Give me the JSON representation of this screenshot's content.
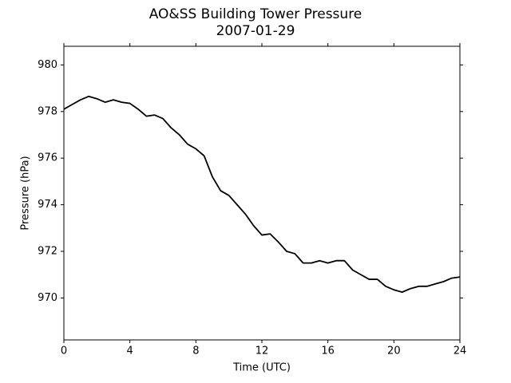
{
  "chart_data": {
    "type": "line",
    "title": "AO&SS Building Tower Pressure",
    "subtitle": "2007-01-29",
    "x_label": "Time (UTC)",
    "y_label": "Pressure (hPa)",
    "x": [
      0,
      0.5,
      1,
      1.5,
      2,
      2.5,
      3,
      3.5,
      4,
      4.5,
      5,
      5.5,
      6,
      6.5,
      7,
      7.5,
      8,
      8.5,
      9,
      9.5,
      10,
      10.5,
      11,
      11.5,
      12,
      12.5,
      13,
      13.5,
      14,
      14.5,
      15,
      15.5,
      16,
      16.5,
      17,
      17.5,
      18,
      18.5,
      19,
      19.5,
      20,
      20.5,
      21,
      21.5,
      22,
      22.5,
      23,
      23.5,
      24
    ],
    "series": [
      {
        "name": "Pressure",
        "color": "#000000",
        "values": [
          978.1,
          978.3,
          978.5,
          978.65,
          978.55,
          978.4,
          978.5,
          978.4,
          978.35,
          978.1,
          977.8,
          977.85,
          977.7,
          977.3,
          977.0,
          976.6,
          976.4,
          976.1,
          975.2,
          974.6,
          974.4,
          974.0,
          973.6,
          973.1,
          972.7,
          972.75,
          972.4,
          972.0,
          971.9,
          971.5,
          971.5,
          971.6,
          971.5,
          971.6,
          971.6,
          971.2,
          971.0,
          970.8,
          970.8,
          970.5,
          970.35,
          970.25,
          970.4,
          970.5,
          970.5,
          970.6,
          970.7,
          970.85,
          970.9
        ]
      }
    ],
    "xlim": [
      0,
      24
    ],
    "xticks": [
      0,
      4,
      8,
      12,
      16,
      20,
      24
    ],
    "ylim": [
      968.2,
      980.8
    ],
    "yticks": [
      970,
      972,
      974,
      976,
      978,
      980
    ],
    "grid": false
  }
}
